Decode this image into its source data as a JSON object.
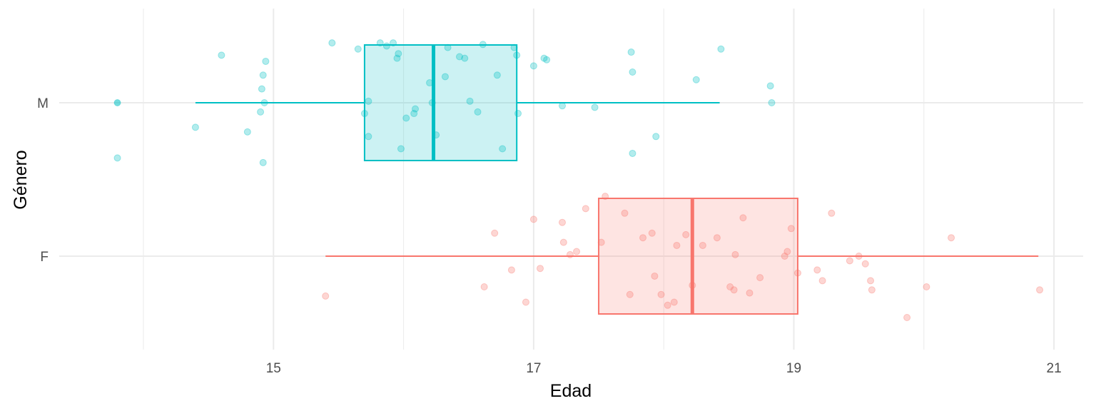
{
  "chart_data": {
    "type": "boxplot",
    "xlabel": "Edad",
    "ylabel": "Género",
    "xlim": [
      13.5,
      21.2
    ],
    "xticks": [
      15,
      17,
      19,
      21
    ],
    "x_minor_gridlines": [
      14,
      16,
      18,
      20
    ],
    "categories": [
      "M",
      "F"
    ],
    "grid": true,
    "legend": "none",
    "series": [
      {
        "category": "M",
        "color": "#00BFC4",
        "box": {
          "whisker_low": 14.4,
          "q1": 15.7,
          "median": 16.23,
          "q3": 16.87,
          "whisker_high": 18.43
        },
        "outliers": [
          13.8
        ],
        "points": [
          [
            13.8,
            0.0
          ],
          [
            13.8,
            -0.36
          ],
          [
            14.4,
            -0.16
          ],
          [
            14.6,
            0.31
          ],
          [
            14.8,
            -0.19
          ],
          [
            14.9,
            -0.06
          ],
          [
            14.91,
            0.09
          ],
          [
            14.92,
            0.18
          ],
          [
            14.93,
            0.0
          ],
          [
            14.94,
            0.27
          ],
          [
            14.92,
            -0.39
          ],
          [
            15.45,
            0.39
          ],
          [
            15.65,
            0.35
          ],
          [
            15.7,
            -0.07
          ],
          [
            15.73,
            0.01
          ],
          [
            15.73,
            -0.22
          ],
          [
            15.82,
            0.39
          ],
          [
            15.87,
            0.37
          ],
          [
            15.92,
            0.39
          ],
          [
            15.95,
            0.29
          ],
          [
            15.96,
            0.32
          ],
          [
            15.98,
            -0.3
          ],
          [
            16.02,
            -0.1
          ],
          [
            16.08,
            -0.07
          ],
          [
            16.09,
            -0.04
          ],
          [
            16.2,
            0.13
          ],
          [
            16.22,
            0.0
          ],
          [
            16.25,
            -0.21
          ],
          [
            16.32,
            0.17
          ],
          [
            16.34,
            0.36
          ],
          [
            16.43,
            0.3
          ],
          [
            16.47,
            0.29
          ],
          [
            16.51,
            0.01
          ],
          [
            16.57,
            -0.06
          ],
          [
            16.61,
            0.38
          ],
          [
            16.72,
            0.18
          ],
          [
            16.76,
            -0.3
          ],
          [
            16.85,
            0.36
          ],
          [
            16.87,
            0.31
          ],
          [
            16.88,
            -0.07
          ],
          [
            17.0,
            0.24
          ],
          [
            17.08,
            0.29
          ],
          [
            17.1,
            0.28
          ],
          [
            17.22,
            -0.02
          ],
          [
            17.47,
            -0.03
          ],
          [
            17.75,
            0.33
          ],
          [
            17.76,
            0.2
          ],
          [
            17.76,
            -0.33
          ],
          [
            17.94,
            -0.22
          ],
          [
            18.25,
            0.15
          ],
          [
            18.44,
            0.35
          ],
          [
            18.82,
            0.11
          ],
          [
            18.83,
            0.0
          ]
        ]
      },
      {
        "category": "F",
        "color": "#F8766D",
        "box": {
          "whisker_low": 15.4,
          "q1": 17.5,
          "median": 18.22,
          "q3": 19.03,
          "whisker_high": 20.88
        },
        "outliers": [],
        "points": [
          [
            15.4,
            -0.26
          ],
          [
            16.62,
            -0.2
          ],
          [
            16.7,
            0.15
          ],
          [
            16.83,
            -0.09
          ],
          [
            16.94,
            -0.3
          ],
          [
            17.0,
            0.24
          ],
          [
            17.05,
            -0.08
          ],
          [
            17.22,
            0.22
          ],
          [
            17.23,
            0.09
          ],
          [
            17.28,
            0.01
          ],
          [
            17.33,
            0.03
          ],
          [
            17.4,
            0.31
          ],
          [
            17.52,
            0.09
          ],
          [
            17.55,
            0.39
          ],
          [
            17.7,
            0.28
          ],
          [
            17.74,
            -0.25
          ],
          [
            17.84,
            0.12
          ],
          [
            17.91,
            0.15
          ],
          [
            17.93,
            -0.13
          ],
          [
            17.98,
            -0.25
          ],
          [
            18.03,
            -0.32
          ],
          [
            18.08,
            -0.3
          ],
          [
            18.1,
            0.07
          ],
          [
            18.17,
            0.14
          ],
          [
            18.22,
            -0.19
          ],
          [
            18.3,
            0.07
          ],
          [
            18.41,
            0.12
          ],
          [
            18.51,
            -0.2
          ],
          [
            18.54,
            -0.22
          ],
          [
            18.55,
            0.01
          ],
          [
            18.61,
            0.25
          ],
          [
            18.66,
            -0.24
          ],
          [
            18.74,
            -0.14
          ],
          [
            18.93,
            0.0
          ],
          [
            18.95,
            0.03
          ],
          [
            18.98,
            0.18
          ],
          [
            19.03,
            -0.11
          ],
          [
            19.18,
            -0.09
          ],
          [
            19.22,
            -0.16
          ],
          [
            19.29,
            0.28
          ],
          [
            19.43,
            -0.03
          ],
          [
            19.5,
            0.0
          ],
          [
            19.55,
            -0.05
          ],
          [
            19.59,
            -0.16
          ],
          [
            19.6,
            -0.22
          ],
          [
            19.87,
            -0.4
          ],
          [
            20.02,
            -0.2
          ],
          [
            20.21,
            0.12
          ],
          [
            20.89,
            -0.22
          ]
        ]
      }
    ]
  }
}
